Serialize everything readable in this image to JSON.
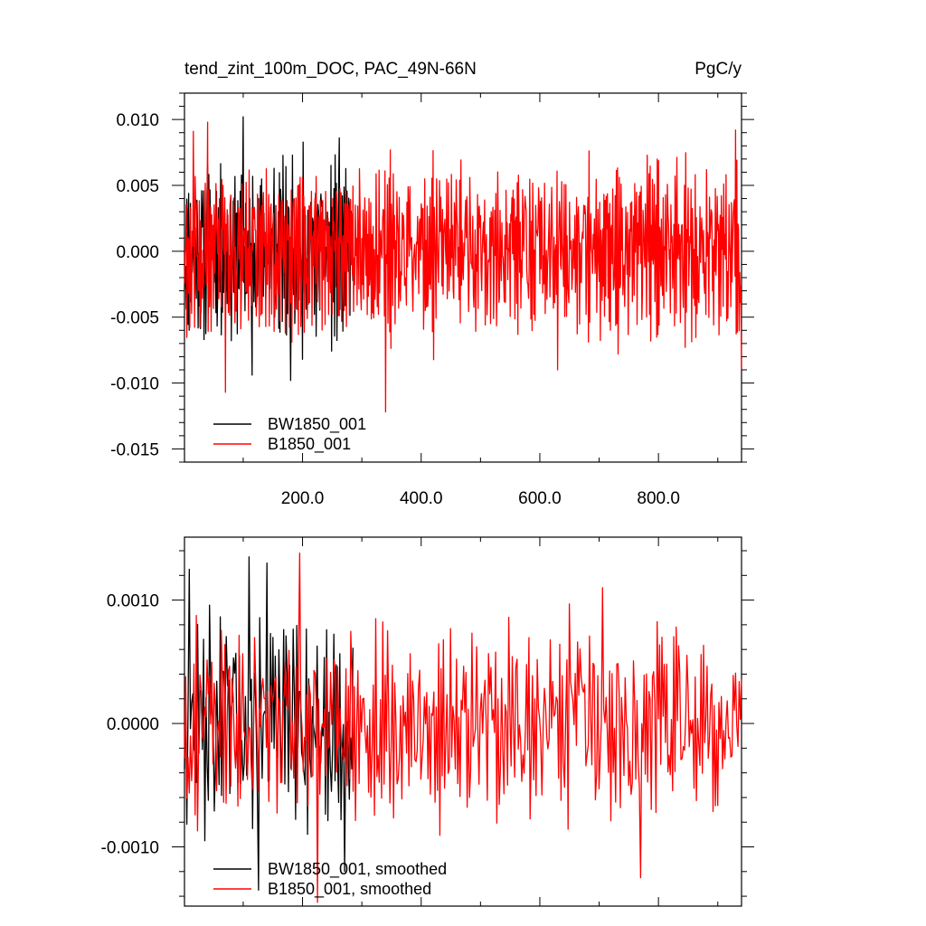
{
  "chart_data": [
    {
      "type": "line",
      "title": "tend_zint_100m_DOC, PAC_49N-66N",
      "units": "PgC/y",
      "xlim": [
        1,
        940
      ],
      "ylim": [
        -0.016,
        0.012
      ],
      "xticks": [
        "200.0",
        "400.0",
        "600.0",
        "800.0"
      ],
      "yticks": [
        "0.010",
        "0.005",
        "0.000",
        "-0.005",
        "-0.010",
        "-0.015"
      ],
      "legend_position": "bottom-left",
      "series": [
        {
          "name": "BW1850_001",
          "color": "#000000",
          "x_range": [
            1,
            285
          ],
          "amplitude": 0.0045,
          "n_points": 285,
          "peaks": [
            [
              40,
              0.0065
            ],
            [
              100,
              0.0102
            ],
            [
              115,
              -0.0094
            ],
            [
              152,
              0.0063
            ],
            [
              180,
              -0.0098
            ],
            [
              200,
              -0.0082
            ],
            [
              262,
              0.0086
            ]
          ]
        },
        {
          "name": "B1850_001",
          "color": "#ff0000",
          "x_range": [
            1,
            940
          ],
          "amplitude": 0.0045,
          "n_points": 940,
          "peaks": [
            [
              16,
              0.0091
            ],
            [
              40,
              0.0098
            ],
            [
              70,
              -0.0107
            ],
            [
              340,
              -0.0122
            ],
            [
              630,
              -0.009
            ],
            [
              930,
              0.0092
            ],
            [
              940,
              -0.009
            ]
          ]
        }
      ]
    },
    {
      "type": "line",
      "xlim": [
        1,
        940
      ],
      "ylim": [
        -0.00148,
        0.00151
      ],
      "xticks": [
        "200.0",
        "400.0",
        "600.0",
        "800.0"
      ],
      "yticks": [
        "0.0010",
        "0.0000",
        "-0.0010"
      ],
      "legend_position": "bottom-left",
      "series": [
        {
          "name": "BW1850_001, smoothed",
          "color": "#000000",
          "x_range": [
            1,
            285
          ],
          "amplitude": 0.0006,
          "n_points": 142,
          "peaks": [
            [
              10,
              0.00125
            ],
            [
              110,
              0.00135
            ],
            [
              125,
              -0.00135
            ],
            [
              140,
              0.0013
            ],
            [
              270,
              -0.0012
            ]
          ]
        },
        {
          "name": "B1850_001, smoothed",
          "color": "#ff0000",
          "x_range": [
            1,
            940
          ],
          "amplitude": 0.00055,
          "n_points": 470,
          "peaks": [
            [
              195,
              0.00138
            ],
            [
              225,
              -0.00145
            ],
            [
              705,
              0.0011
            ],
            [
              770,
              -0.00125
            ]
          ]
        }
      ]
    }
  ]
}
